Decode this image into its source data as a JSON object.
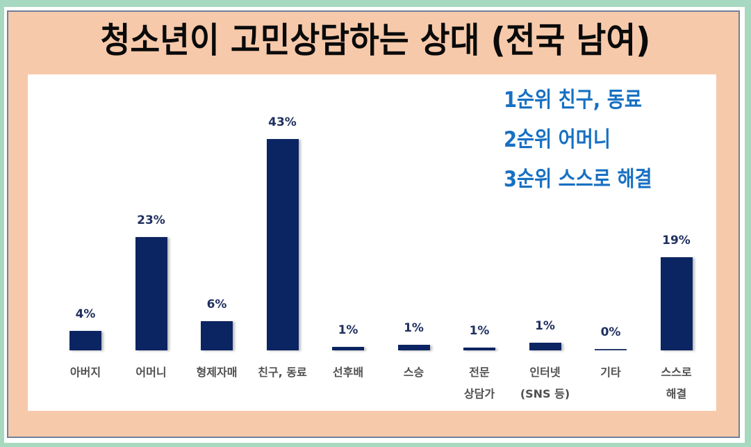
{
  "title": "청소년이 고민상담하는 상대 (전국 남여)",
  "ranking": [
    "1순위 친구, 동료",
    "2순위 어머니",
    "3순위 스스로 해결"
  ],
  "colors": {
    "background_green": "#a6d9bf",
    "frame_peach": "#f6c9aa",
    "bar": "#0b2462",
    "value_label": "#1f2f5f",
    "category_label": "#505050",
    "ranking_text": "#1770c2"
  },
  "chart_data": {
    "type": "bar",
    "title": "청소년이 고민상담하는 상대 (전국 남여)",
    "xlabel": "",
    "ylabel": "",
    "grid": false,
    "legend": null,
    "ylim": [
      0,
      45
    ],
    "categories": [
      "아버지",
      "어머니",
      "형제자매",
      "친구, 동료",
      "선후배",
      "스승",
      "전문 상담가",
      "인터넷 (SNS 등)",
      "기타",
      "스스로 해결"
    ],
    "category_lines": [
      [
        "아버지"
      ],
      [
        "어머니"
      ],
      [
        "형제자매"
      ],
      [
        "친구, 동료"
      ],
      [
        "선후배"
      ],
      [
        "스승"
      ],
      [
        "전문",
        "상담가"
      ],
      [
        "인터넷",
        "(SNS 등)"
      ],
      [
        "기타"
      ],
      [
        "스스로",
        "해결"
      ]
    ],
    "values": [
      4,
      23,
      6,
      43,
      1,
      1,
      1,
      1,
      0,
      19
    ],
    "value_labels": [
      "4%",
      "23%",
      "6%",
      "43%",
      "1%",
      "1%",
      "1%",
      "1%",
      "0%",
      "19%"
    ],
    "annotations": [
      "1순위 친구, 동료",
      "2순위 어머니",
      "3순위 스스로 해결"
    ]
  }
}
